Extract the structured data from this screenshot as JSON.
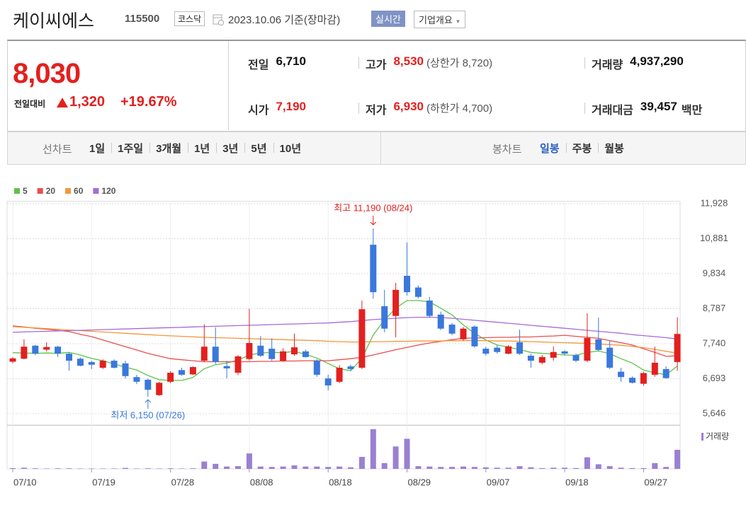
{
  "header": {
    "name": "케이씨에스",
    "code": "115500",
    "market": "코스닥",
    "date": "2023.10.06 기준(장마감)",
    "realtime": "실시간",
    "company_overview": "기업개요"
  },
  "summary": {
    "price": "8,030",
    "change_label": "전일대비",
    "change": "1,320",
    "change_pct": "+19.67%",
    "items": [
      {
        "label": "전일",
        "value": "6,710"
      },
      {
        "label": "고가",
        "value": "8,530",
        "note": "(상한가 8,720)"
      },
      {
        "label": "거래량",
        "value": "4,937,290"
      },
      {
        "label": "시가",
        "value": "7,190"
      },
      {
        "label": "저가",
        "value": "6,930",
        "note": "(하한가 4,700)"
      },
      {
        "label": "거래대금",
        "value": "39,457",
        "unit": "백만"
      }
    ]
  },
  "period_bar": {
    "line_label": "선차트",
    "line_periods": [
      "1일",
      "1주일",
      "3개월",
      "1년",
      "3년",
      "5년",
      "10년"
    ],
    "candle_label": "봉차트",
    "candle_periods": [
      "일봉",
      "주봉",
      "월봉"
    ],
    "selected": "일봉"
  },
  "chart_data": {
    "type": "candlestick",
    "categories": [
      "07/10",
      null,
      null,
      null,
      null,
      null,
      null,
      "07/19",
      null,
      null,
      null,
      null,
      null,
      null,
      "07/28",
      null,
      null,
      null,
      null,
      null,
      null,
      "08/08",
      null,
      null,
      null,
      null,
      null,
      null,
      "08/18",
      null,
      null,
      null,
      null,
      null,
      null,
      "08/29",
      null,
      null,
      null,
      null,
      null,
      null,
      "09/07",
      null,
      null,
      null,
      null,
      null,
      null,
      "09/18",
      null,
      null,
      null,
      null,
      null,
      null,
      "09/27",
      null,
      null,
      null
    ],
    "open": [
      7200,
      7290,
      7680,
      7560,
      7650,
      7440,
      7290,
      7190,
      7020,
      7230,
      7150,
      6740,
      6660,
      6200,
      6600,
      6950,
      6820,
      7230,
      7650,
      7070,
      6870,
      7280,
      7680,
      7590,
      7230,
      7420,
      7510,
      7230,
      6700,
      6600,
      7060,
      7020,
      10700,
      8860,
      8570,
      9770,
      9420,
      9030,
      8610,
      8310,
      7870,
      8250,
      7590,
      7620,
      7440,
      7780,
      7380,
      7170,
      7320,
      7510,
      7400,
      7230,
      7870,
      7620,
      6900,
      6720,
      6540,
      6810,
      6980,
      7190
    ],
    "high": [
      7340,
      7870,
      7700,
      7780,
      7680,
      7480,
      7330,
      7230,
      7270,
      7270,
      7230,
      6810,
      6700,
      6600,
      6920,
      7020,
      7060,
      8320,
      8230,
      7230,
      7400,
      8780,
      7970,
      7900,
      7600,
      8040,
      7560,
      7280,
      6810,
      7100,
      7110,
      9030,
      11190,
      9350,
      9560,
      10770,
      9480,
      9140,
      8700,
      8360,
      8240,
      8290,
      7650,
      7700,
      7700,
      8160,
      7440,
      7400,
      7660,
      7540,
      7440,
      8650,
      8520,
      7830,
      7020,
      6760,
      6900,
      7650,
      7060,
      8530
    ],
    "low": [
      7150,
      7270,
      7400,
      7500,
      7340,
      6930,
      7060,
      6980,
      6980,
      7000,
      6700,
      6530,
      6150,
      6180,
      6560,
      6780,
      6800,
      7190,
      7130,
      6700,
      6800,
      7230,
      7340,
      7230,
      7200,
      7380,
      7320,
      6750,
      6340,
      6560,
      6940,
      6980,
      9090,
      8080,
      7930,
      9180,
      9090,
      8510,
      8150,
      7990,
      7820,
      7620,
      7380,
      7440,
      7420,
      7400,
      7020,
      7120,
      7230,
      7400,
      7190,
      7190,
      7510,
      6980,
      6600,
      6550,
      6480,
      6750,
      6690,
      6930
    ],
    "close": [
      7300,
      7650,
      7440,
      7640,
      7440,
      7230,
      7080,
      7110,
      7230,
      7020,
      6770,
      6600,
      6360,
      6570,
      6870,
      6810,
      7040,
      7650,
      7190,
      7000,
      7360,
      7760,
      7380,
      7280,
      7510,
      7630,
      7340,
      6810,
      6490,
      7020,
      6980,
      8770,
      9280,
      8190,
      9350,
      9280,
      9140,
      8570,
      8190,
      8040,
      8190,
      7660,
      7440,
      7490,
      7660,
      7440,
      7230,
      7340,
      7490,
      7440,
      7230,
      7910,
      7550,
      7020,
      6740,
      6570,
      6860,
      7170,
      6710,
      8030
    ],
    "up_color": "#e3201f",
    "down_color": "#3a78dc",
    "series": [
      {
        "name": "5",
        "color": "#5ec24a",
        "values": [
          7470,
          7460,
          7450,
          7460,
          7450,
          7480,
          7400,
          7300,
          7230,
          7130,
          7040,
          6950,
          6790,
          6660,
          6640,
          6640,
          6730,
          6990,
          7110,
          7160,
          7250,
          7400,
          7460,
          7480,
          7470,
          7510,
          7420,
          7310,
          7150,
          6990,
          6930,
          7300,
          8000,
          8450,
          8800,
          9030,
          9030,
          8990,
          8800,
          8600,
          8300,
          8050,
          7850,
          7700,
          7640,
          7560,
          7480,
          7450,
          7430,
          7400,
          7390,
          7480,
          7520,
          7440,
          7290,
          7160,
          6950,
          6870,
          6810,
          7070
        ]
      },
      {
        "name": "20",
        "color": "#ec4d4d",
        "values": [
          8270,
          8240,
          8200,
          8170,
          8140,
          8100,
          8020,
          7950,
          7850,
          7750,
          7650,
          7550,
          7450,
          7370,
          7290,
          7260,
          7230,
          7200,
          7200,
          7200,
          7200,
          7200,
          7210,
          7210,
          7220,
          7220,
          7230,
          7230,
          7230,
          7260,
          7290,
          7330,
          7400,
          7480,
          7560,
          7630,
          7700,
          7760,
          7810,
          7860,
          7900,
          7910,
          7920,
          7930,
          7930,
          7940,
          7940,
          7960,
          7970,
          7990,
          7960,
          7930,
          7900,
          7830,
          7770,
          7700,
          7590,
          7480,
          7360,
          7380
        ]
      },
      {
        "name": "60",
        "color": "#f2973a",
        "values": [
          8250,
          8230,
          8210,
          8190,
          8170,
          8150,
          8130,
          8110,
          8090,
          8070,
          8050,
          8030,
          8010,
          7990,
          7975,
          7960,
          7945,
          7930,
          7920,
          7910,
          7900,
          7890,
          7880,
          7870,
          7860,
          7850,
          7840,
          7830,
          7810,
          7800,
          7790,
          7790,
          7800,
          7800,
          7810,
          7810,
          7820,
          7820,
          7820,
          7830,
          7830,
          7830,
          7830,
          7820,
          7820,
          7810,
          7800,
          7790,
          7780,
          7770,
          7760,
          7750,
          7730,
          7710,
          7690,
          7660,
          7620,
          7570,
          7510,
          7460
        ]
      },
      {
        "name": "120",
        "color": "#a56bd6",
        "values": [
          8080,
          8090,
          8100,
          8110,
          8120,
          8130,
          8140,
          8150,
          8160,
          8170,
          8180,
          8190,
          8200,
          8210,
          8220,
          8230,
          8240,
          8250,
          8260,
          8270,
          8280,
          8290,
          8300,
          8310,
          8320,
          8330,
          8340,
          8350,
          8360,
          8380,
          8400,
          8430,
          8460,
          8480,
          8500,
          8520,
          8530,
          8530,
          8520,
          8500,
          8470,
          8440,
          8410,
          8380,
          8350,
          8320,
          8290,
          8260,
          8230,
          8200,
          8170,
          8140,
          8110,
          8080,
          8050,
          8010,
          7980,
          7950,
          7920,
          7880
        ]
      }
    ],
    "ylim": [
      5300,
      12000
    ],
    "yticks": [
      {
        "value": 5646,
        "label": "5,646"
      },
      {
        "value": 6693,
        "label": "6,693"
      },
      {
        "value": 7740,
        "label": "7,740"
      },
      {
        "value": 8787,
        "label": "8,787"
      },
      {
        "value": 9834,
        "label": "9,834"
      },
      {
        "value": 10881,
        "label": "10,881"
      },
      {
        "value": 11928,
        "label": "11,928"
      }
    ],
    "grid": true,
    "annotations": [
      {
        "text": "최고 11,190 (08/24)",
        "color": "#e3201f"
      },
      {
        "text": "최저 6,150 (07/26)",
        "color": "#3a78dc"
      }
    ],
    "volume": {
      "name": "거래량",
      "color": "#9a80d2",
      "ylim": [
        0,
        11000000
      ],
      "values": [
        200000,
        300000,
        150000,
        100000,
        150000,
        150000,
        100000,
        100000,
        100000,
        100000,
        250000,
        100000,
        150000,
        100000,
        150000,
        100000,
        150000,
        1900000,
        1300000,
        600000,
        700000,
        4000000,
        600000,
        500000,
        600000,
        900000,
        600000,
        600000,
        500000,
        600000,
        400000,
        3100000,
        10300000,
        1500000,
        5800000,
        7800000,
        700000,
        600000,
        500000,
        500000,
        600000,
        500000,
        400000,
        300000,
        300000,
        700000,
        400000,
        200000,
        300000,
        300000,
        200000,
        3000000,
        1200000,
        700000,
        300000,
        200000,
        200000,
        1500000,
        500000,
        4937290
      ]
    }
  }
}
